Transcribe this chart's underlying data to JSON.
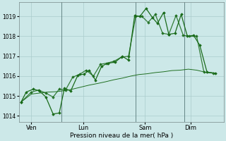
{
  "background_color": "#cce8e8",
  "grid_color": "#aacccc",
  "line_color": "#1a6b1a",
  "title": "",
  "xlabel": "Pression niveau de la mer( hPa )",
  "ylim": [
    1013.7,
    1019.7
  ],
  "yticks": [
    1014,
    1015,
    1016,
    1017,
    1018,
    1019
  ],
  "xtick_labels": [
    "Ven",
    "Lun",
    "Sam",
    "Dim"
  ],
  "xtick_positions": [
    0.5,
    3.0,
    6.0,
    8.2
  ],
  "xlim": [
    -0.1,
    9.8
  ],
  "line1_x": [
    0.0,
    0.25,
    0.6,
    0.9,
    1.2,
    1.55,
    1.85,
    2.1,
    2.4,
    2.75,
    3.05,
    3.3,
    3.6,
    3.9,
    4.2,
    4.55,
    4.9,
    5.2,
    5.5,
    5.75,
    6.05,
    6.35,
    6.6,
    6.9,
    7.15,
    7.45,
    7.75,
    8.05,
    8.35,
    8.65,
    9.0,
    9.4
  ],
  "line1_y": [
    1014.7,
    1015.2,
    1015.35,
    1015.25,
    1014.95,
    1014.1,
    1014.15,
    1015.4,
    1015.25,
    1016.05,
    1016.1,
    1016.3,
    1015.8,
    1016.5,
    1016.65,
    1016.7,
    1017.0,
    1016.8,
    1019.05,
    1019.0,
    1019.4,
    1018.95,
    1018.65,
    1019.2,
    1018.1,
    1018.15,
    1019.1,
    1018.0,
    1018.05,
    1017.55,
    1016.2,
    1016.15
  ],
  "line2_x": [
    0.0,
    0.5,
    0.9,
    1.3,
    1.7,
    2.1,
    2.5,
    2.9,
    3.3,
    3.7,
    4.1,
    4.5,
    4.9,
    5.3,
    5.7,
    6.1,
    6.5,
    6.9,
    7.3,
    7.7,
    8.1,
    8.5,
    8.9,
    9.4
  ],
  "line2_y": [
    1014.7,
    1015.1,
    1015.15,
    1015.2,
    1015.22,
    1015.27,
    1015.35,
    1015.45,
    1015.55,
    1015.63,
    1015.72,
    1015.82,
    1015.9,
    1016.0,
    1016.08,
    1016.12,
    1016.18,
    1016.22,
    1016.28,
    1016.3,
    1016.35,
    1016.3,
    1016.2,
    1016.15
  ],
  "line3_x": [
    0.0,
    0.5,
    0.85,
    1.2,
    1.55,
    1.85,
    2.15,
    2.5,
    2.85,
    3.15,
    3.5,
    3.85,
    4.15,
    4.5,
    4.85,
    5.2,
    5.55,
    5.85,
    6.15,
    6.5,
    6.85,
    7.15,
    7.5,
    7.85,
    8.15,
    8.5,
    8.85,
    9.3
  ],
  "line3_y": [
    1014.7,
    1015.2,
    1015.3,
    1015.15,
    1014.95,
    1015.35,
    1015.3,
    1015.95,
    1016.1,
    1016.3,
    1016.0,
    1016.6,
    1016.65,
    1016.75,
    1016.95,
    1017.0,
    1019.0,
    1019.0,
    1018.7,
    1019.1,
    1018.15,
    1018.1,
    1019.05,
    1018.05,
    1018.0,
    1018.0,
    1016.2,
    1016.15
  ],
  "vline_x": [
    1.95,
    5.55,
    7.9
  ],
  "figsize": [
    3.2,
    2.0
  ],
  "dpi": 100
}
